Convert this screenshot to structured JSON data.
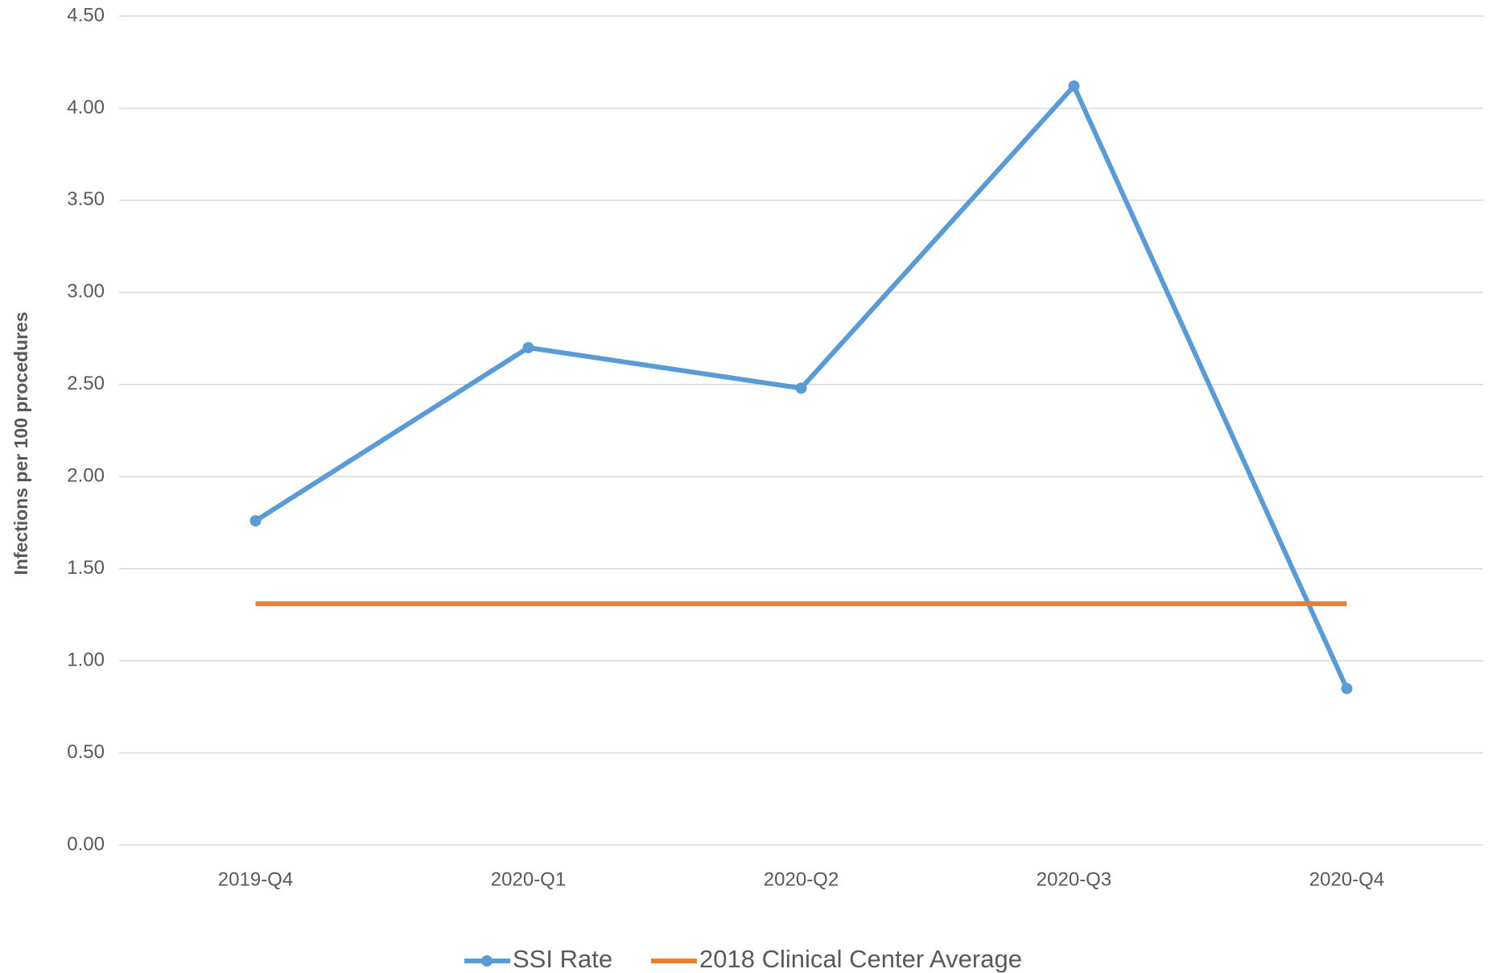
{
  "chart_data": {
    "type": "line",
    "y_label": "Infections per 100 procedures",
    "categories": [
      "2019-Q4",
      "2020-Q1",
      "2020-Q2",
      "2020-Q3",
      "2020-Q4"
    ],
    "series": [
      {
        "name": "SSI Rate",
        "color": "#5b9bd5",
        "markers": true,
        "values": [
          1.76,
          2.7,
          2.48,
          4.12,
          0.85
        ]
      },
      {
        "name": "2018 Clinical Center Average",
        "color": "#ed7d31",
        "markers": false,
        "values": [
          1.31,
          1.31,
          1.31,
          1.31,
          1.31
        ]
      }
    ],
    "ylim": [
      0,
      4.5
    ],
    "yticks": [
      {
        "value": 0,
        "label": "0.00"
      },
      {
        "value": 0.5,
        "label": "0.50"
      },
      {
        "value": 1,
        "label": "1.00"
      },
      {
        "value": 1.5,
        "label": "1.50"
      },
      {
        "value": 2,
        "label": "2.00"
      },
      {
        "value": 2.5,
        "label": "2.50"
      },
      {
        "value": 3,
        "label": "3.00"
      },
      {
        "value": 3.5,
        "label": "3.50"
      },
      {
        "value": 4,
        "label": "4.00"
      },
      {
        "value": 4.5,
        "label": "4.50"
      }
    ],
    "grid": true,
    "legend": "bottom"
  }
}
